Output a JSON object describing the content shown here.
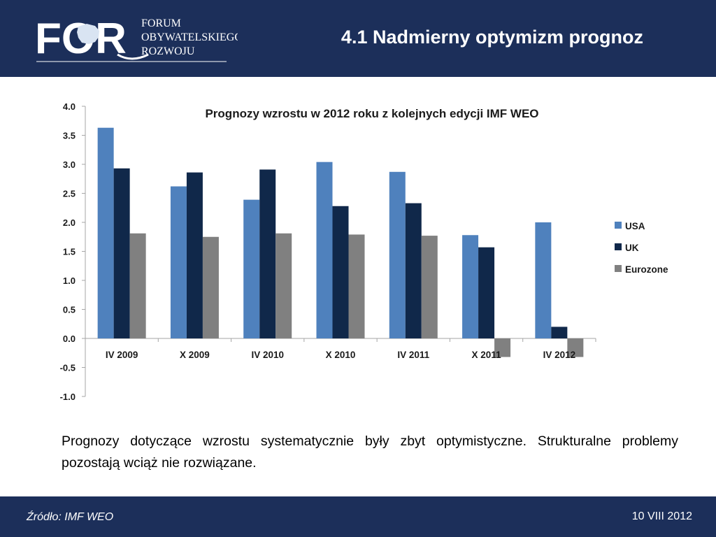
{
  "header": {
    "logo_mark": "FOR",
    "logo_line1": "FORUM",
    "logo_line2": "OBYWATELSKIEGO",
    "logo_line3": "ROZWOJU",
    "title": "4.1 Nadmierny optymizm prognoz"
  },
  "colors": {
    "header_bg": "#1c2f5a",
    "usa": "#4f81bd",
    "uk": "#10284a",
    "eurozone": "#808080"
  },
  "chart_data": {
    "type": "bar",
    "title": "Prognozy wzrostu w 2012 roku z kolejnych edycji IMF WEO",
    "categories": [
      "IV 2009",
      "X 2009",
      "IV 2010",
      "X 2010",
      "IV 2011",
      "X 2011",
      "IV 2012"
    ],
    "series": [
      {
        "name": "USA",
        "color": "#4f81bd",
        "values": [
          3.63,
          2.62,
          2.39,
          3.04,
          2.87,
          1.78,
          2.0
        ]
      },
      {
        "name": "UK",
        "color": "#10284a",
        "values": [
          2.93,
          2.86,
          2.91,
          2.28,
          2.33,
          1.57,
          0.2
        ]
      },
      {
        "name": "Eurozone",
        "color": "#808080",
        "values": [
          1.81,
          1.75,
          1.81,
          1.79,
          1.77,
          -0.32,
          -0.32
        ]
      }
    ],
    "yticks": [
      "4.0",
      "3.5",
      "3.0",
      "2.5",
      "2.0",
      "1.5",
      "1.0",
      "0.5",
      "0.0",
      "-0.5",
      "-1.0"
    ],
    "ylim": [
      -1.0,
      4.0
    ],
    "legend_position": "right",
    "grid": false
  },
  "description": "Prognozy dotyczące wzrostu systematycznie były zbyt optymistyczne. Strukturalne problemy pozostają wciąż nie rozwiązane.",
  "footer": {
    "source": "Źródło: IMF WEO",
    "date": "10 VIII 2012"
  }
}
